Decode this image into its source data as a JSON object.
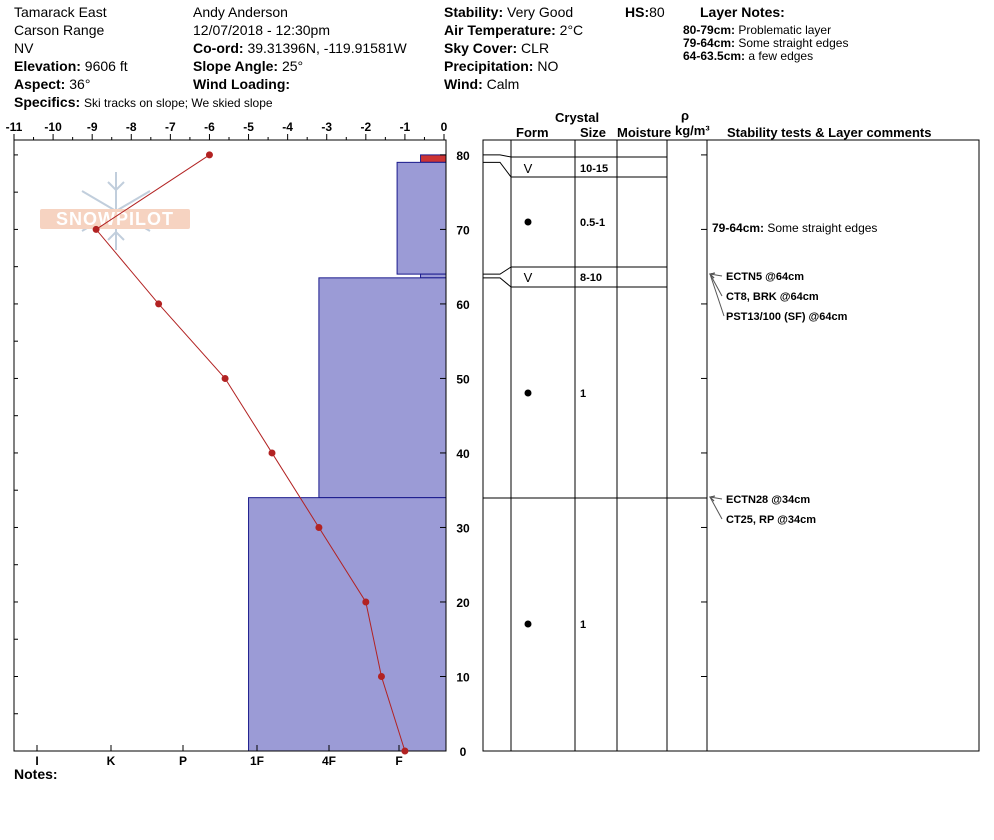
{
  "header": {
    "location": "Tamarack East",
    "range": "Carson Range",
    "state": "NV",
    "elevation_label": "Elevation:",
    "elevation": "9606 ft",
    "aspect_label": "Aspect:",
    "aspect": "36°",
    "specifics_label": "Specifics:",
    "specifics": "Ski tracks on slope; We skied slope",
    "observer": "Andy Anderson",
    "datetime": "12/07/2018 - 12:30pm",
    "coord_label": "Co-ord:",
    "coord": "39.31396N, -119.91581W",
    "slope_label": "Slope Angle:",
    "slope": "25°",
    "wind_loading_label": "Wind Loading:",
    "wind_loading": "",
    "stability_label": "Stability:",
    "stability": "Very Good",
    "air_temp_label": "Air Temperature:",
    "air_temp": "2°C",
    "sky_label": "Sky Cover:",
    "sky": "CLR",
    "precip_label": "Precipitation:",
    "precip": "NO",
    "wind_label": "Wind:",
    "wind": "Calm",
    "hs_label": "HS:",
    "hs": "80"
  },
  "layer_notes": {
    "title": "Layer Notes:",
    "items": [
      {
        "range": "80-79cm:",
        "text": "Problematic layer"
      },
      {
        "range": "79-64cm:",
        "text": "Some straight edges"
      },
      {
        "range": "64-63.5cm:",
        "text": "a few edges"
      }
    ]
  },
  "logo_text": "SNOWPILOT",
  "columns": {
    "crystal": "Crystal",
    "form": "Form",
    "size": "Size",
    "moisture": "Moisture",
    "rho": "ρ",
    "density_unit": "kg/m³",
    "stability_comments": "Stability tests & Layer comments"
  },
  "notes_label": "Notes:",
  "chart_data": {
    "type": "line",
    "x_top_ticks": [
      "-11",
      "-10",
      "-9",
      "-8",
      "-7",
      "-6",
      "-5",
      "-4",
      "-3",
      "-2",
      "-1",
      "0"
    ],
    "x_top_range": [
      -11,
      0
    ],
    "y_ticks": [
      "0",
      "10",
      "20",
      "30",
      "40",
      "50",
      "60",
      "70",
      "80"
    ],
    "y_range": [
      0,
      82
    ],
    "hardness_ticks": [
      "I",
      "K",
      "P",
      "1F",
      "4F",
      "F"
    ],
    "temperature_profile": [
      {
        "depth": 80,
        "temp": -6.0
      },
      {
        "depth": 70,
        "temp": -8.9
      },
      {
        "depth": 60,
        "temp": -7.3
      },
      {
        "depth": 50,
        "temp": -5.6
      },
      {
        "depth": 40,
        "temp": -4.4
      },
      {
        "depth": 30,
        "temp": -3.2
      },
      {
        "depth": 20,
        "temp": -2.0
      },
      {
        "depth": 10,
        "temp": -1.6
      },
      {
        "depth": 0,
        "temp": -1.0
      }
    ],
    "hardness_layers": [
      {
        "top": 80,
        "bottom": 79,
        "hardness_x": -0.6,
        "color": "#cc3333"
      },
      {
        "top": 79,
        "bottom": 64,
        "hardness_x": -1.2,
        "color": "#9b9bd6"
      },
      {
        "top": 64,
        "bottom": 63.5,
        "hardness_x": -0.6,
        "color": "#9b9bd6"
      },
      {
        "top": 63.5,
        "bottom": 34,
        "hardness_x": -3.2,
        "color": "#9b9bd6"
      },
      {
        "top": 34,
        "bottom": 0,
        "hardness_x": -5.0,
        "color": "#9b9bd6"
      }
    ],
    "layer_boundaries": [
      80,
      79,
      64,
      63.5,
      34,
      0
    ],
    "crystal_layers": [
      {
        "form": "V",
        "size": "10-15",
        "depth": 78.5,
        "filled": false
      },
      {
        "form": "●",
        "size": "0.5-1",
        "depth": 71,
        "filled": true
      },
      {
        "form": "V",
        "size": "8-10",
        "depth": 63.7,
        "filled": false
      },
      {
        "form": "●",
        "size": "1",
        "depth": 48,
        "filled": true
      },
      {
        "form": "●",
        "size": "1",
        "depth": 17,
        "filled": true
      }
    ],
    "layer_comments": [
      {
        "depth": 71,
        "label": "79-64cm:",
        "text": "Some straight edges"
      }
    ],
    "stability_tests": [
      {
        "text": "ECTN5 @64cm",
        "depth": 64
      },
      {
        "text": "CT8, BRK @64cm",
        "depth": 64
      },
      {
        "text": "PST13/100 (SF) @64cm",
        "depth": 64
      },
      {
        "text": "ECTN28 @34cm",
        "depth": 34
      },
      {
        "text": "CT25, RP @34cm",
        "depth": 34
      }
    ],
    "colors": {
      "temperature": "#b22222",
      "hardness_fill": "#9b9bd6",
      "hardness_stroke": "#1a1a8c"
    }
  }
}
